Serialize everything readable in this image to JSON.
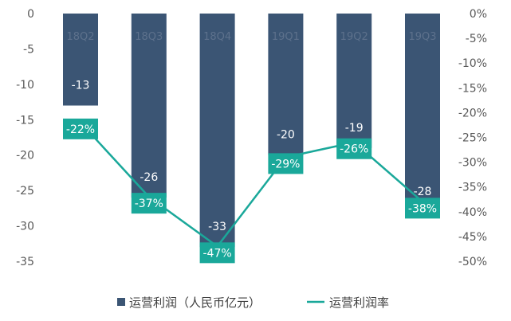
{
  "chart_data": {
    "type": "bar",
    "categories": [
      "18Q2",
      "18Q3",
      "18Q4",
      "19Q1",
      "19Q2",
      "19Q3"
    ],
    "series": [
      {
        "name": "运营利润（人民币亿元）",
        "type": "bar",
        "axis": "left",
        "values": [
          -13,
          -26,
          -33,
          -20,
          -19,
          -28
        ],
        "labels": [
          "-13",
          "-26",
          "-33",
          "-20",
          "-19",
          "-28"
        ]
      },
      {
        "name": "运营利润率",
        "type": "line",
        "axis": "right",
        "values": [
          -22,
          -37,
          -47,
          -29,
          -26,
          -38
        ],
        "labels": [
          "-22%",
          "-37%",
          "-47%",
          "-29%",
          "-26%",
          "-38%"
        ]
      }
    ],
    "y_left": {
      "lim": [
        -35,
        0
      ],
      "ticks": [
        "0",
        "-5",
        "-10",
        "-15",
        "-20",
        "-25",
        "-30",
        "-35"
      ]
    },
    "y_right": {
      "lim": [
        -50,
        0
      ],
      "ticks": [
        "0%",
        "-5%",
        "-10%",
        "-15%",
        "-20%",
        "-25%",
        "-30%",
        "-35%",
        "-40%",
        "-45%",
        "-50%"
      ]
    },
    "grid": false,
    "legend_position": "bottom",
    "colors": {
      "bar": "#3b5574",
      "line": "#1aa89a",
      "label_box": "#1aa89a"
    }
  }
}
